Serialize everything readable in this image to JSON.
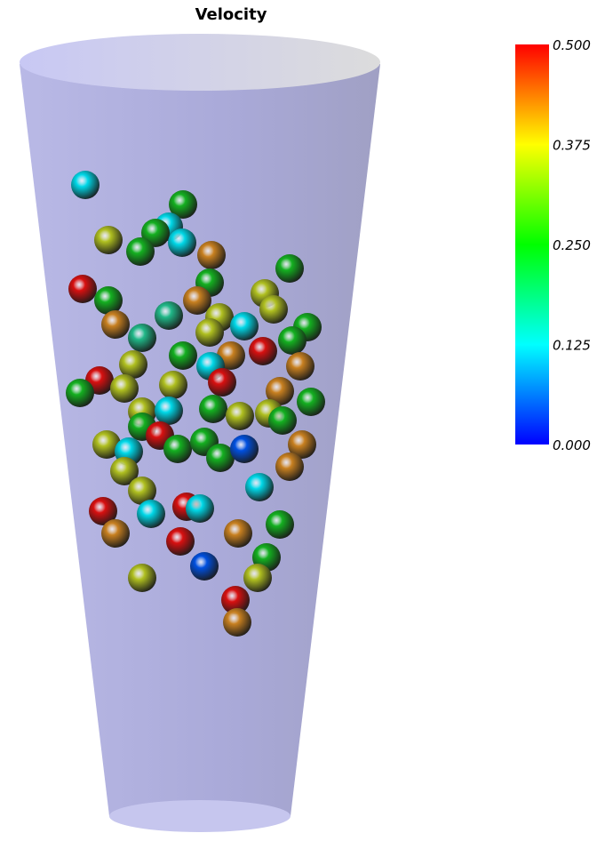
{
  "title": "Velocity",
  "colorbar": {
    "labels": [
      "0.500",
      "0.375",
      "0.250",
      "0.125",
      "0.000"
    ]
  }
}
